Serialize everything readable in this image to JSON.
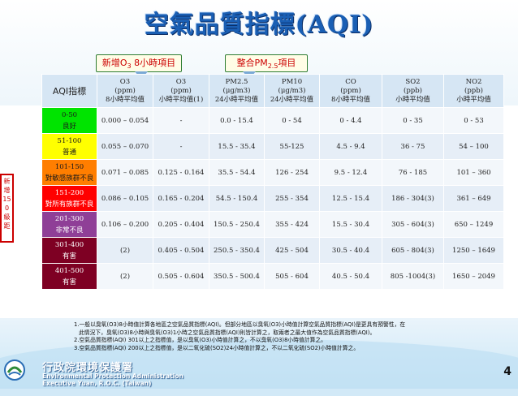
{
  "title": "空氣品質指標(AQI)",
  "callouts": {
    "o3_pre": "新增O",
    "o3_sub": "3",
    "o3_post": " 8小時項目",
    "pm_pre": "整合PM",
    "pm_sub": "2.5",
    "pm_post": "項目"
  },
  "table": {
    "headers": [
      {
        "l1": "AQI指標",
        "l2": "",
        "l3": ""
      },
      {
        "l1": "O3",
        "l2": "(ppm)",
        "l3": "8小時平均值"
      },
      {
        "l1": "O3",
        "l2": "(ppm)",
        "l3": "小時平均值(1)"
      },
      {
        "l1": "PM2.5",
        "l2": "(μg/m3)",
        "l3": "24小時平均值"
      },
      {
        "l1": "PM10",
        "l2": "(μg/m3)",
        "l3": "24小時平均值"
      },
      {
        "l1": "CO",
        "l2": "(ppm)",
        "l3": "8小時平均值"
      },
      {
        "l1": "SO2",
        "l2": "(ppb)",
        "l3": "小時平均值"
      },
      {
        "l1": "NO2",
        "l2": "(ppb)",
        "l3": "小時平均值"
      }
    ],
    "rows": [
      {
        "range": "0-50",
        "label": "良好",
        "color": "#00e400",
        "text_color": "#1a1a1a",
        "cells": [
          "0.000 – 0.054",
          "-",
          "0.0 - 15.4",
          "0 - 54",
          "0 - 4.4",
          "0 - 35",
          "0 - 53"
        ]
      },
      {
        "range": "51-100",
        "label": "普通",
        "color": "#ffff00",
        "text_color": "#1a1a1a",
        "cells": [
          "0.055 – 0.070",
          "-",
          "15.5 - 35.4",
          "55-125",
          "4.5 - 9.4",
          "36 - 75",
          "54 – 100"
        ]
      },
      {
        "range": "101-150",
        "label": "對敏感族群不良",
        "color": "#ff7e00",
        "text_color": "#1a1a1a",
        "cells": [
          "0.071 – 0.085",
          "0.125 - 0.164",
          "35.5 - 54.4",
          "126 - 254",
          "9.5 - 12.4",
          "76 - 185",
          "101 – 360"
        ]
      },
      {
        "range": "151-200",
        "label": "對所有族群不良",
        "color": "#ff0000",
        "text_color": "#ffffff",
        "cells": [
          "0.086 – 0.105",
          "0.165 - 0.204",
          "54.5 - 150.4",
          "255 - 354",
          "12.5 - 15.4",
          "186 - 304(3)",
          "361 – 649"
        ]
      },
      {
        "range": "201-300",
        "label": "非常不良",
        "color": "#8f3f97",
        "text_color": "#ffffff",
        "cells": [
          "0.106 – 0.200",
          "0.205 - 0.404",
          "150.5 - 250.4",
          "355 - 424",
          "15.5 - 30.4",
          "305 - 604(3)",
          "650 – 1249"
        ]
      },
      {
        "range": "301-400",
        "label": "有害",
        "color": "#7e0023",
        "text_color": "#ffffff",
        "cells": [
          "(2)",
          "0.405 - 0.504",
          "250.5 - 350.4",
          "425 - 504",
          "30.5 - 40.4",
          "605 - 804(3)",
          "1250 – 1649"
        ]
      },
      {
        "range": "401-500",
        "label": "有害",
        "color": "#7e0023",
        "text_color": "#ffffff",
        "cells": [
          "(2)",
          "0.505 - 0.604",
          "350.5 - 500.4",
          "505 - 604",
          "40.5 - 50.4",
          "805 -1004(3)",
          "1650 – 2049"
        ]
      }
    ]
  },
  "side_label": "新增150級距",
  "notes": [
    "1.一般以臭氧(O3)8小時值計算各地區之空氣品質指標(AQI)。但部分地區以臭氧(O3)小時值計算空氣品質指標(AQI)是更具有預警性，在",
    "此情況下，臭氧(O3)8小時與臭氧(O3)1小時之空氣品質指標(AQI)則皆計算之，取兩者之最大值作為空氣品質指標(AQI)。",
    "2.空氣品質指標(AQI) 301以上之指標值，是以臭氧(O3)小時值計算之，不以臭氧(O3)8小時值計算之。",
    "3.空氣品質指標(AQI) 200以上之指標值，是以二氧化硫(SO2)24小時值計算之，不以二氧化硫(SO2)小時值計算之。"
  ],
  "footer": {
    "org_cn": "行政院環境保護署",
    "org_en1": "Environmental Protection Administration",
    "org_en2": "Executive Yuan, R.O.C. (Taiwan)",
    "page": "4"
  }
}
